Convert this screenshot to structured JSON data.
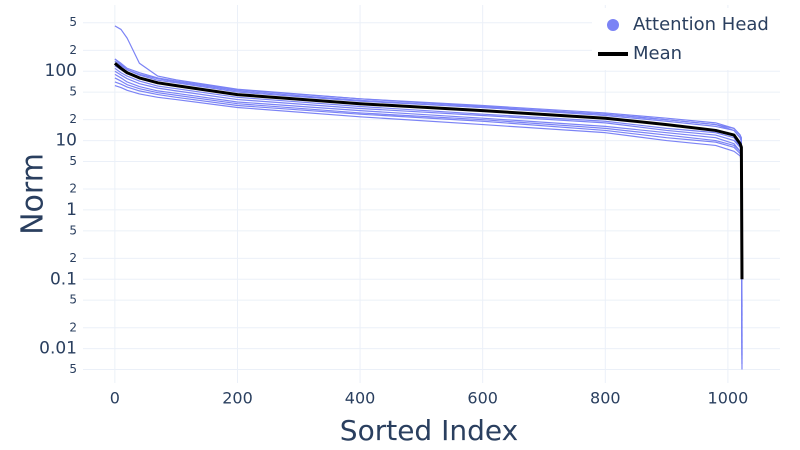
{
  "chart_data": {
    "type": "line",
    "x_label": "Sorted Index",
    "y_label": "Norm",
    "log_y": true,
    "grid": true,
    "legend_position": "top-right",
    "xlim": [
      -52,
      1085
    ],
    "xticks": [
      0,
      200,
      400,
      600,
      800,
      1000
    ],
    "ylim": [
      0.0032,
      900
    ],
    "yticks": [
      {
        "value": 0.005,
        "label": "5"
      },
      0.01,
      {
        "value": 0.02,
        "label": "2"
      },
      {
        "value": 0.05,
        "label": "5"
      },
      0.1,
      {
        "value": 0.2,
        "label": "2"
      },
      {
        "value": 0.5,
        "label": "5"
      },
      1,
      {
        "value": 2,
        "label": "2"
      },
      {
        "value": 5,
        "label": "5"
      },
      10,
      {
        "value": 20,
        "label": "2"
      },
      {
        "value": 50,
        "label": "5"
      },
      100,
      {
        "value": 200,
        "label": "2"
      },
      {
        "value": 500,
        "label": "5"
      }
    ],
    "x": [
      0,
      10,
      20,
      40,
      70,
      100,
      200,
      400,
      600,
      800,
      900,
      980,
      1010,
      1020,
      1022,
      1023
    ],
    "series": [
      {
        "name": "Attention Head",
        "color": "#7b83f5",
        "values": [
          [
            450,
            400,
            300,
            130,
            85,
            75,
            55,
            40,
            31,
            24,
            20,
            17,
            15,
            12,
            10,
            0.03
          ],
          [
            150,
            130,
            110,
            95,
            80,
            72,
            54,
            40,
            32,
            25,
            21,
            18,
            15,
            12,
            11,
            0.02
          ],
          [
            140,
            120,
            105,
            88,
            74,
            68,
            50,
            37,
            30,
            23,
            19,
            16,
            14,
            11,
            10,
            0.008
          ],
          [
            120,
            105,
            92,
            80,
            68,
            62,
            46,
            34,
            27,
            21,
            17,
            14,
            12,
            9,
            8,
            0.005
          ],
          [
            110,
            95,
            85,
            72,
            61,
            56,
            42,
            31,
            24,
            19,
            15,
            13,
            11,
            8,
            7,
            0.04
          ],
          [
            100,
            88,
            78,
            66,
            57,
            52,
            39,
            29,
            23,
            18,
            14,
            12,
            10,
            8,
            7,
            0.015
          ],
          [
            90,
            80,
            70,
            60,
            52,
            48,
            36,
            27,
            21,
            16,
            13,
            11,
            9,
            7,
            6,
            0.006
          ],
          [
            80,
            72,
            64,
            56,
            49,
            45,
            34,
            25,
            20,
            15,
            12,
            10,
            8.5,
            7,
            6,
            0.025
          ],
          [
            70,
            65,
            59,
            52,
            46,
            42,
            32,
            24,
            19,
            14,
            11,
            9.5,
            8,
            6.5,
            5.5,
            0.012
          ],
          [
            62,
            58,
            53,
            47,
            42,
            39,
            30,
            22,
            17,
            13,
            10,
            8.5,
            7,
            6,
            5,
            0.01
          ],
          [
            150,
            125,
            105,
            90,
            78,
            70,
            52,
            38,
            30,
            24,
            20,
            17,
            14,
            11,
            9.5,
            0.007
          ]
        ]
      },
      {
        "name": "Mean",
        "color": "#000000",
        "values": [
          130,
          110,
          95,
          80,
          68,
          62,
          46,
          34,
          27,
          21,
          17,
          14,
          12,
          9,
          8,
          0.1
        ]
      }
    ]
  }
}
